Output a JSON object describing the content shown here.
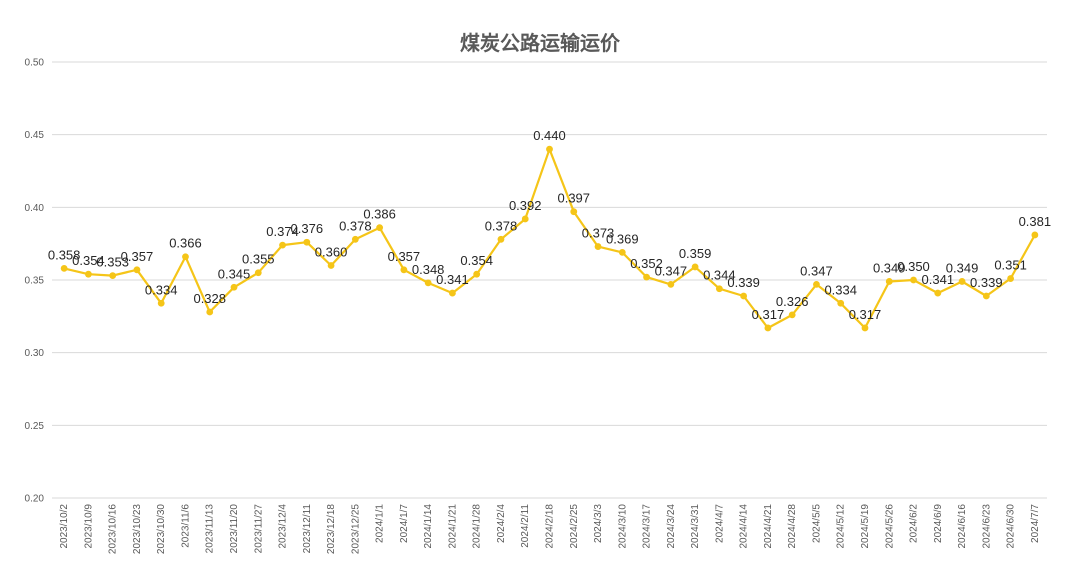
{
  "chart_data": {
    "type": "line",
    "title": "煤炭公路运输运价",
    "xlabel": "",
    "ylabel": "",
    "ylim": [
      0.2,
      0.5
    ],
    "yticks": [
      "0.50",
      "0.45",
      "0.40",
      "0.35",
      "0.30",
      "0.25",
      "0.20"
    ],
    "grid": true,
    "line_color": "#f5c518",
    "categories": [
      "2023/10/2",
      "2023/10/9",
      "2023/10/16",
      "2023/10/23",
      "2023/10/30",
      "2023/11/6",
      "2023/11/13",
      "2023/11/20",
      "2023/11/27",
      "2023/12/4",
      "2023/12/11",
      "2023/12/18",
      "2023/12/25",
      "2024/1/1",
      "2024/1/7",
      "2024/1/14",
      "2024/1/21",
      "2024/1/28",
      "2024/2/4",
      "2024/2/11",
      "2024/2/18",
      "2024/2/25",
      "2024/3/3",
      "2024/3/10",
      "2024/3/17",
      "2024/3/24",
      "2024/3/31",
      "2024/4/7",
      "2024/4/14",
      "2024/4/21",
      "2024/4/28",
      "2024/5/5",
      "2024/5/12",
      "2024/5/19",
      "2024/5/26",
      "2024/6/2",
      "2024/6/9",
      "2024/6/16",
      "2024/6/23",
      "2024/6/30",
      "2024/7/7"
    ],
    "values": [
      0.358,
      0.354,
      0.353,
      0.357,
      0.334,
      0.366,
      0.328,
      0.345,
      0.355,
      0.374,
      0.376,
      0.36,
      0.378,
      0.386,
      0.357,
      0.348,
      0.341,
      0.354,
      0.378,
      0.392,
      0.44,
      0.397,
      0.373,
      0.369,
      0.352,
      0.347,
      0.359,
      0.344,
      0.339,
      0.317,
      0.326,
      0.347,
      0.334,
      0.317,
      0.349,
      0.35,
      0.341,
      0.349,
      0.339,
      0.351,
      0.381
    ],
    "labels": [
      "0.358",
      "0.354",
      "0.353",
      "0.357",
      "0.334",
      "0.366",
      "0.328",
      "0.345",
      "0.355",
      "0.374",
      "0.376",
      "0.360",
      "0.378",
      "0.386",
      "0.357",
      "0.348",
      "0.341",
      "0.354",
      "0.378",
      "0.392",
      "0.440",
      "0.397",
      "0.373",
      "0.369",
      "0.352",
      "0.347",
      "0.359",
      "0.344",
      "0.339",
      "0.317",
      "0.326",
      "0.347",
      "0.334",
      "0.317",
      "0.349",
      "0.350",
      "0.341",
      "0.349",
      "0.339",
      "0.351",
      "0.381"
    ]
  }
}
